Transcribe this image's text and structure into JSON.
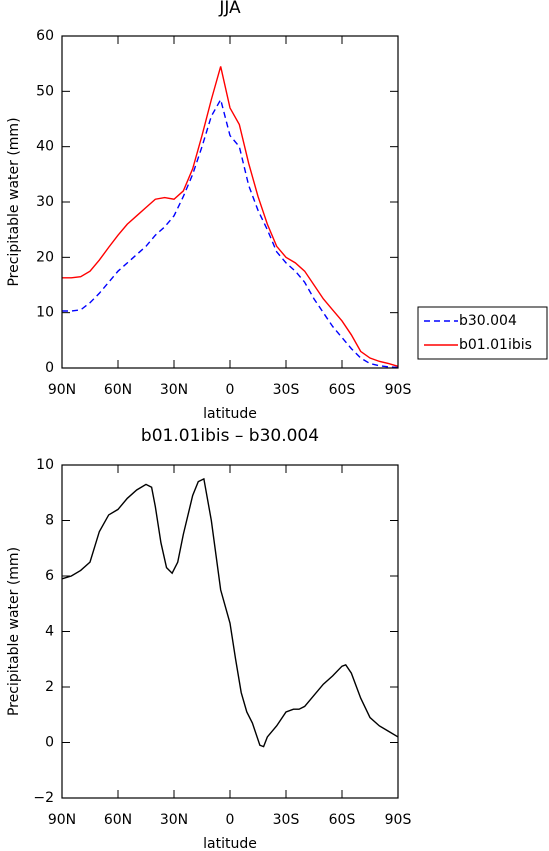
{
  "chart_data": [
    {
      "type": "line",
      "title": "JJA",
      "xlabel": "latitude",
      "ylabel": "Precipitable water (mm)",
      "x": [
        90,
        85,
        80,
        75,
        70,
        65,
        60,
        55,
        50,
        45,
        40,
        35,
        30,
        25,
        20,
        15,
        10,
        5,
        0,
        -5,
        -10,
        -15,
        -20,
        -25,
        -30,
        -35,
        -40,
        -45,
        -50,
        -55,
        -60,
        -65,
        -70,
        -75,
        -80,
        -85,
        -90
      ],
      "series": [
        {
          "name": "b30.004",
          "color": "#0000ff",
          "dashed": true,
          "values": [
            10.3,
            10.3,
            10.5,
            11.8,
            13.5,
            15.5,
            17.5,
            19,
            20.5,
            22,
            24,
            25.5,
            27.5,
            31,
            35,
            40,
            45.5,
            48.5,
            42,
            40,
            33,
            28.5,
            25,
            21,
            19,
            17.5,
            15.5,
            12.5,
            10,
            7.5,
            5.5,
            3.5,
            1.8,
            0.8,
            0.4,
            0.2,
            0.1
          ]
        },
        {
          "name": "b01.01ibis",
          "color": "#ff0000",
          "dashed": false,
          "values": [
            16.3,
            16.3,
            16.5,
            17.5,
            19.5,
            21.8,
            24,
            26,
            27.5,
            29,
            30.5,
            30.8,
            30.5,
            32,
            36,
            42,
            48.5,
            54.5,
            47,
            44,
            37,
            31,
            26,
            22,
            20,
            19,
            17.5,
            15,
            12.5,
            10.5,
            8.5,
            6,
            3,
            1.8,
            1.2,
            0.8,
            0.3
          ]
        }
      ],
      "xlim": [
        90,
        -90
      ],
      "xticks": [
        {
          "value": 90,
          "label": "90N"
        },
        {
          "value": 60,
          "label": "60N"
        },
        {
          "value": 30,
          "label": "30N"
        },
        0,
        {
          "value": -30,
          "label": "30S"
        },
        {
          "value": -60,
          "label": "60S"
        },
        {
          "value": -90,
          "label": "90S"
        }
      ],
      "ylim": [
        0,
        60
      ],
      "yticks": [
        0,
        10,
        20,
        30,
        40,
        50,
        60
      ],
      "legend": "right"
    },
    {
      "type": "line",
      "title": "b01.01ibis – b30.004",
      "xlabel": "latitude",
      "ylabel": "Precipitable water (mm)",
      "x": [
        90,
        85,
        80,
        75,
        70,
        65,
        60,
        55,
        50,
        45,
        42,
        40,
        37,
        34,
        31,
        28,
        25,
        20,
        17,
        14,
        10,
        5,
        0,
        -3,
        -6,
        -9,
        -12,
        -16,
        -18,
        -20,
        -25,
        -30,
        -34,
        -37,
        -40,
        -45,
        -50,
        -55,
        -60,
        -62,
        -65,
        -70,
        -75,
        -80,
        -85,
        -90
      ],
      "values": [
        5.9,
        6.0,
        6.2,
        6.5,
        7.6,
        8.2,
        8.4,
        8.8,
        9.1,
        9.3,
        9.2,
        8.5,
        7.2,
        6.3,
        6.1,
        6.5,
        7.5,
        8.9,
        9.4,
        9.5,
        8.0,
        5.5,
        4.3,
        3.0,
        1.8,
        1.1,
        0.7,
        -0.1,
        -0.15,
        0.2,
        0.6,
        1.1,
        1.2,
        1.2,
        1.3,
        1.7,
        2.1,
        2.4,
        2.75,
        2.8,
        2.5,
        1.6,
        0.9,
        0.6,
        0.4,
        0.2
      ],
      "color": "#000000",
      "xlim": [
        90,
        -90
      ],
      "xticks": [
        {
          "value": 90,
          "label": "90N"
        },
        {
          "value": 60,
          "label": "60N"
        },
        {
          "value": 30,
          "label": "30N"
        },
        0,
        {
          "value": -30,
          "label": "30S"
        },
        {
          "value": -60,
          "label": "60S"
        },
        {
          "value": -90,
          "label": "90S"
        }
      ],
      "ylim": [
        -2,
        10
      ],
      "yticks": [
        {
          "value": -2,
          "label": "−2"
        },
        0,
        2,
        4,
        6,
        8,
        10
      ]
    }
  ]
}
